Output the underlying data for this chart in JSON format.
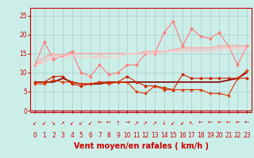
{
  "background_color": "#cceee8",
  "grid_color": "#aacccc",
  "xlabel": "Vent moyen/en rafales ( km/h )",
  "xlabel_color": "#cc0000",
  "xlabel_fontsize": 7,
  "xticks": [
    0,
    1,
    2,
    3,
    4,
    5,
    6,
    7,
    8,
    9,
    10,
    11,
    12,
    13,
    14,
    15,
    16,
    17,
    18,
    19,
    20,
    21,
    22,
    23
  ],
  "yticks": [
    0,
    5,
    10,
    15,
    20,
    25
  ],
  "ylim": [
    0,
    27
  ],
  "xlim": [
    -0.5,
    23.5
  ],
  "tick_color": "#cc0000",
  "tick_fontsize": 5.5,
  "series": [
    {
      "y": [
        7.5,
        7.5,
        7.5,
        8.5,
        7.5,
        7.0,
        7.0,
        7.0,
        7.5,
        7.5,
        7.5,
        7.5,
        7.5,
        7.5,
        7.5,
        7.5,
        7.5,
        7.5,
        7.5,
        7.5,
        7.5,
        8.0,
        8.5,
        10.0
      ],
      "color": "#880000",
      "lw": 1.2,
      "marker": null,
      "ms": 0
    },
    {
      "y": [
        7.5,
        7.5,
        9.0,
        9.0,
        7.0,
        6.5,
        7.0,
        7.5,
        7.5,
        7.5,
        9.0,
        7.5,
        6.5,
        6.5,
        6.0,
        5.5,
        9.5,
        8.5,
        8.5,
        8.5,
        8.5,
        8.5,
        8.5,
        8.5
      ],
      "color": "#cc2200",
      "lw": 0.8,
      "marker": "D",
      "ms": 1.5
    },
    {
      "y": [
        7.0,
        7.0,
        8.0,
        7.5,
        7.5,
        7.0,
        7.0,
        7.5,
        7.0,
        7.5,
        7.5,
        5.0,
        4.5,
        6.5,
        5.5,
        5.5,
        5.5,
        5.5,
        5.5,
        4.5,
        4.5,
        4.0,
        8.5,
        10.5
      ],
      "color": "#dd3300",
      "lw": 0.8,
      "marker": "+",
      "ms": 2.5
    },
    {
      "y": [
        12.0,
        18.0,
        13.5,
        14.5,
        15.5,
        10.0,
        9.0,
        12.0,
        9.5,
        10.0,
        12.0,
        12.0,
        15.0,
        15.0,
        20.5,
        23.5,
        17.0,
        21.5,
        19.5,
        19.0,
        20.5,
        17.0,
        12.0,
        17.0
      ],
      "color": "#ff7777",
      "lw": 0.8,
      "marker": "D",
      "ms": 1.5
    },
    {
      "y": [
        12.0,
        14.0,
        15.0,
        14.5,
        15.0,
        15.0,
        15.0,
        15.0,
        15.0,
        15.0,
        15.0,
        15.0,
        15.5,
        15.5,
        15.5,
        16.0,
        16.5,
        16.5,
        16.5,
        16.5,
        17.0,
        17.0,
        17.0,
        17.0
      ],
      "color": "#ffaaaa",
      "lw": 1.2,
      "marker": null,
      "ms": 0
    },
    {
      "y": [
        12.0,
        13.0,
        14.5,
        14.5,
        14.5,
        14.0,
        14.0,
        14.5,
        14.0,
        14.0,
        15.0,
        15.0,
        15.0,
        15.0,
        15.5,
        15.5,
        16.0,
        16.0,
        16.0,
        16.0,
        16.5,
        16.5,
        16.5,
        16.5
      ],
      "color": "#ffbbbb",
      "lw": 0.8,
      "marker": null,
      "ms": 0
    },
    {
      "y": [
        12.0,
        12.5,
        14.0,
        14.0,
        14.5,
        14.0,
        14.0,
        14.0,
        14.0,
        14.0,
        15.0,
        15.0,
        15.0,
        15.0,
        15.5,
        15.5,
        15.5,
        15.5,
        15.5,
        15.5,
        16.0,
        16.0,
        16.0,
        16.0
      ],
      "color": "#ffcccc",
      "lw": 0.8,
      "marker": null,
      "ms": 0
    }
  ],
  "wind_arrows": [
    "↙",
    "↙",
    "↘",
    "↗",
    "↙",
    "↙",
    "↙",
    "←",
    "←",
    "↑",
    "→",
    "↗",
    "↗",
    "↗",
    "↓",
    "↙",
    "↙",
    "↖",
    "←",
    "←",
    "←",
    "←",
    "←",
    "←"
  ],
  "arrow_color": "#cc0000",
  "arrow_fontsize": 5
}
